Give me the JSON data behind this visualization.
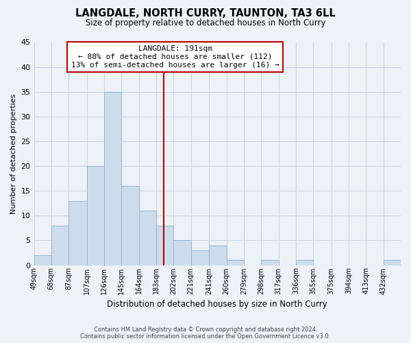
{
  "title": "LANGDALE, NORTH CURRY, TAUNTON, TA3 6LL",
  "subtitle": "Size of property relative to detached houses in North Curry",
  "xlabel": "Distribution of detached houses by size in North Curry",
  "ylabel": "Number of detached properties",
  "bin_labels": [
    "49sqm",
    "68sqm",
    "87sqm",
    "107sqm",
    "126sqm",
    "145sqm",
    "164sqm",
    "183sqm",
    "202sqm",
    "221sqm",
    "241sqm",
    "260sqm",
    "279sqm",
    "298sqm",
    "317sqm",
    "336sqm",
    "355sqm",
    "375sqm",
    "394sqm",
    "413sqm",
    "432sqm"
  ],
  "bin_left_edges": [
    49,
    68,
    87,
    107,
    126,
    145,
    164,
    183,
    202,
    221,
    241,
    260,
    279,
    298,
    317,
    336,
    355,
    375,
    394,
    413,
    432
  ],
  "bin_widths": [
    19,
    19,
    20,
    19,
    19,
    19,
    19,
    19,
    19,
    20,
    19,
    19,
    19,
    19,
    19,
    19,
    20,
    19,
    19,
    19,
    19
  ],
  "bar_heights": [
    2,
    8,
    13,
    20,
    35,
    16,
    11,
    8,
    5,
    3,
    4,
    1,
    0,
    1,
    0,
    1,
    0,
    0,
    0,
    0,
    1
  ],
  "bar_color": "#cddcec",
  "bar_edge_color": "#92b4d0",
  "ylim": [
    0,
    45
  ],
  "yticks": [
    0,
    5,
    10,
    15,
    20,
    25,
    30,
    35,
    40,
    45
  ],
  "vline_x": 191,
  "vline_color": "#bb0000",
  "annotation_title": "LANGDALE: 191sqm",
  "annotation_line1": "← 88% of detached houses are smaller (112)",
  "annotation_line2": "13% of semi-detached houses are larger (16) →",
  "annotation_box_facecolor": "#ffffff",
  "annotation_box_edgecolor": "#bb0000",
  "grid_color": "#c8d4e0",
  "background_color": "#edf2f7",
  "footer_line1": "Contains HM Land Registry data © Crown copyright and database right 2024.",
  "footer_line2": "Contains public sector information licensed under the Open Government Licence v3.0."
}
